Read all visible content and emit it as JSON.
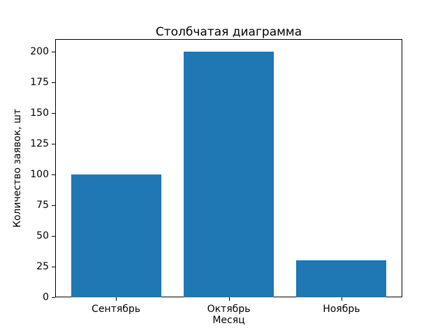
{
  "chart_data": {
    "type": "bar",
    "title": "Столбчатая диаграмма",
    "xlabel": "Месяц",
    "ylabel": "Количество заявок, шт",
    "categories": [
      "Сентябрь",
      "Октябрь",
      "Ноябрь"
    ],
    "values": [
      100,
      200,
      30
    ],
    "yticks": [
      0,
      25,
      50,
      75,
      100,
      125,
      150,
      175,
      200
    ],
    "ylim": [
      0,
      210
    ],
    "xlim": [
      -0.54,
      2.54
    ],
    "bar_width_units": 0.8,
    "bar_color": "#1f77b4",
    "grid": false,
    "legend_position": "none"
  }
}
